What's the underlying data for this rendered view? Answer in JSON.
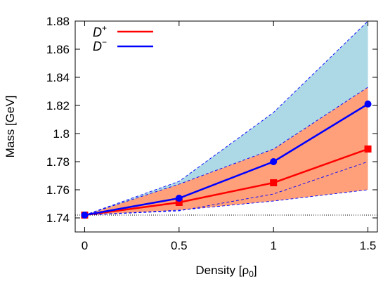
{
  "chart_data": {
    "type": "line",
    "xlabel_main": "Density [",
    "xlabel_rho": "ρ",
    "xlabel_sub": "0",
    "xlabel_close": "]",
    "ylabel": "Mass [GeV]",
    "xlim": [
      -0.05,
      1.55
    ],
    "ylim": [
      1.73,
      1.88
    ],
    "x_ticks": [
      0,
      0.5,
      1,
      1.5
    ],
    "x_tick_labels": [
      "0",
      "0.5",
      "1",
      "1.5"
    ],
    "y_ticks": [
      1.74,
      1.76,
      1.78,
      1.8,
      1.82,
      1.84,
      1.86,
      1.88
    ],
    "y_tick_labels": [
      "1.74",
      "1.76",
      "1.78",
      "1.8",
      "1.82",
      "1.84",
      "1.86",
      "1.88"
    ],
    "x": [
      0,
      0.5,
      1,
      1.5
    ],
    "series": [
      {
        "name": "D+",
        "legend_base": "D",
        "legend_sup": "+",
        "color": "#ff0000",
        "marker": "square",
        "values": [
          1.742,
          1.751,
          1.765,
          1.789
        ],
        "band_lower": [
          1.742,
          1.7455,
          1.752,
          1.76
        ],
        "band_upper": [
          1.742,
          1.764,
          1.789,
          1.833
        ],
        "band_color": "#ffa07a",
        "inner_dashed": [
          1.742,
          1.745,
          1.757,
          1.78
        ]
      },
      {
        "name": "D−",
        "legend_base": "D",
        "legend_sup": "−",
        "color": "#0000ff",
        "marker": "circle",
        "values": [
          1.742,
          1.754,
          1.78,
          1.821
        ],
        "band_lower": [
          1.742,
          1.764,
          1.789,
          1.833
        ],
        "band_upper": [
          1.742,
          1.766,
          1.815,
          1.88
        ],
        "band_color": "#add8e6"
      }
    ],
    "reference_line": {
      "y": 1.742,
      "style": "dotted"
    },
    "legend_position": "top-left",
    "grid": false
  }
}
